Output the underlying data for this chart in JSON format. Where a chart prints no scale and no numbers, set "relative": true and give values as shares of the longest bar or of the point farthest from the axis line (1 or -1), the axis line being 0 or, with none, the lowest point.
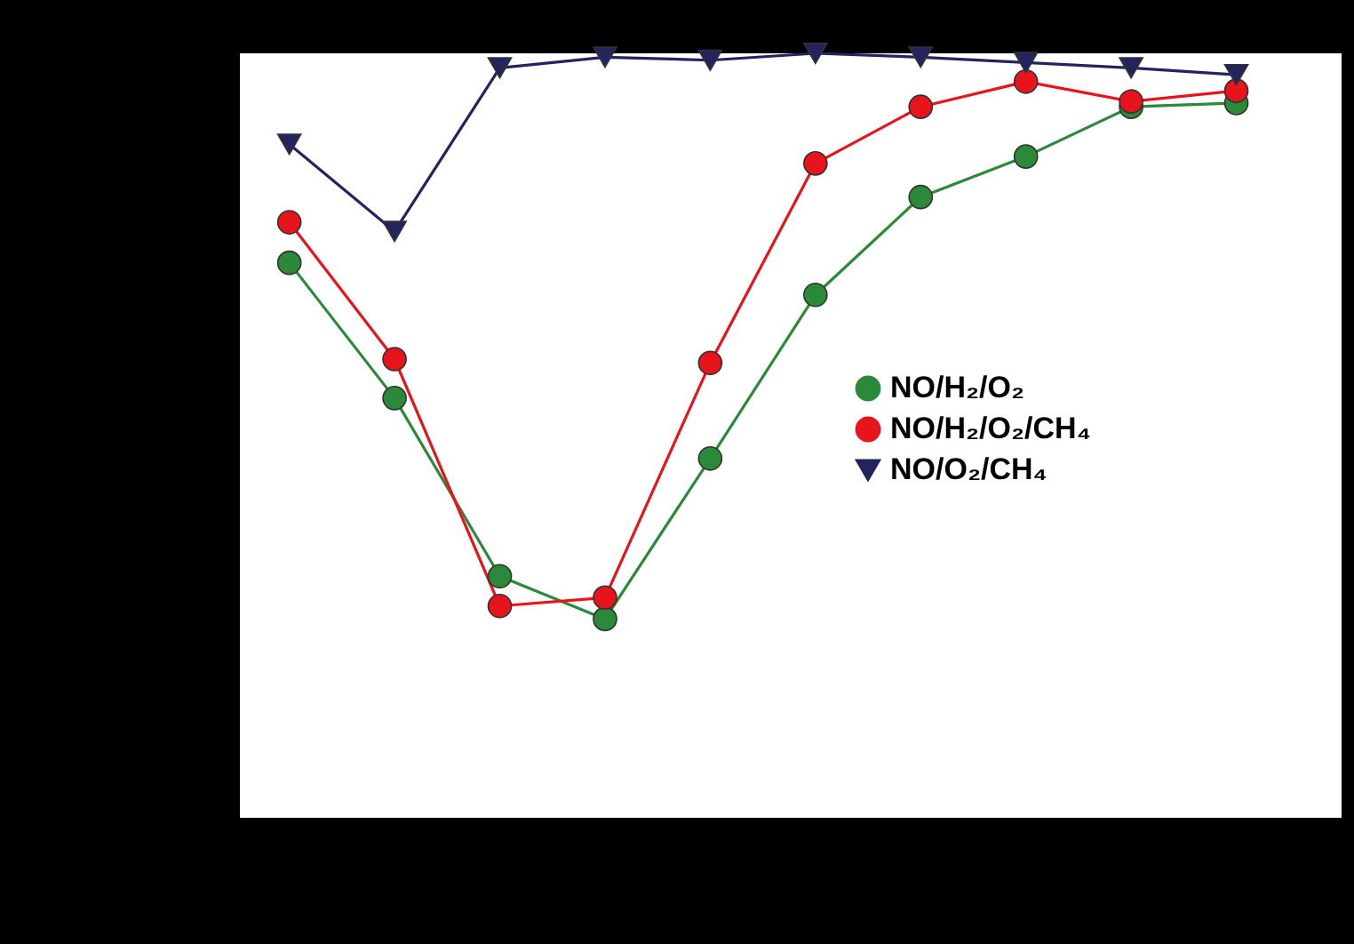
{
  "chart_data": {
    "type": "line",
    "relative": true,
    "categories": [
      null,
      null,
      null,
      null,
      null,
      null,
      null,
      null,
      null,
      null
    ],
    "legend": "right",
    "line_style": "solid",
    "series": [
      {
        "name": "NO/H₂/O₂",
        "color": "#2a8a3a",
        "marker": "circle",
        "values": [
          0.726,
          0.549,
          0.316,
          0.26,
          0.47,
          0.684,
          0.812,
          0.865,
          0.93,
          0.935
        ]
      },
      {
        "name": "NO/H₂/O₂/CH₄",
        "color": "#e8141c",
        "marker": "circle",
        "values": [
          0.779,
          0.6,
          0.277,
          0.288,
          0.595,
          0.856,
          0.93,
          0.963,
          0.937,
          0.951
        ]
      },
      {
        "name": "NO/O₂/CH₄",
        "color": "#23235e",
        "marker": "triangle",
        "values": [
          0.881,
          0.767,
          0.981,
          0.995,
          0.991,
          1.0,
          0.995,
          0.988,
          0.981,
          0.972
        ]
      }
    ]
  }
}
